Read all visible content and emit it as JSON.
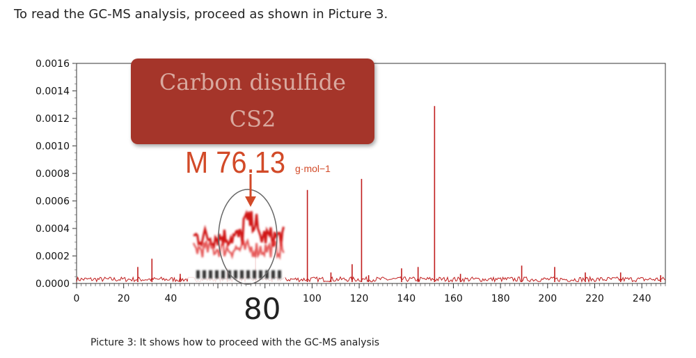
{
  "intro_text": "To read the GC-MS analysis, proceed as shown in Picture 3.",
  "caption": "Picture 3: It shows how to proceed with the GC-MS analysis",
  "callout": {
    "line1": "Carbon disulfide",
    "line2": "CS2",
    "mass": "M 76.13",
    "unit": "g·mol−1",
    "zoom_label": "80",
    "box_color": "#a5362a",
    "text_color": "#d9a99f",
    "accent_color": "#d24a28"
  },
  "chart_data": {
    "type": "line",
    "xlim": [
      0,
      250
    ],
    "ylim": [
      0,
      0.0016
    ],
    "x_ticks": [
      "0",
      "20",
      "40",
      "100",
      "120",
      "140",
      "160",
      "180",
      "200",
      "220",
      "240"
    ],
    "y_ticks": [
      "0.0000",
      "0.0002",
      "0.0004",
      "0.0006",
      "0.0008",
      "0.0010",
      "0.0012",
      "0.0014",
      "0.0016"
    ],
    "series": [
      {
        "color": "#c01c1c",
        "baseline": 3e-05,
        "peaks": [
          {
            "x": 26,
            "y": 0.00012
          },
          {
            "x": 32,
            "y": 0.00018
          },
          {
            "x": 44,
            "y": 7e-05
          },
          {
            "x": 64,
            "y": 0.00011
          },
          {
            "x": 76,
            "y": 0.00025
          },
          {
            "x": 83,
            "y": 8e-05
          },
          {
            "x": 98,
            "y": 0.00068
          },
          {
            "x": 108,
            "y": 8e-05
          },
          {
            "x": 117,
            "y": 0.00014
          },
          {
            "x": 121,
            "y": 0.00076
          },
          {
            "x": 124,
            "y": 6e-05
          },
          {
            "x": 138,
            "y": 0.00011
          },
          {
            "x": 145,
            "y": 0.00012
          },
          {
            "x": 152,
            "y": 0.00129
          },
          {
            "x": 163,
            "y": 7e-05
          },
          {
            "x": 189,
            "y": 0.00013
          },
          {
            "x": 203,
            "y": 0.00012
          },
          {
            "x": 216,
            "y": 8e-05
          },
          {
            "x": 231,
            "y": 8e-05
          },
          {
            "x": 248,
            "y": 6e-05
          }
        ]
      }
    ]
  }
}
